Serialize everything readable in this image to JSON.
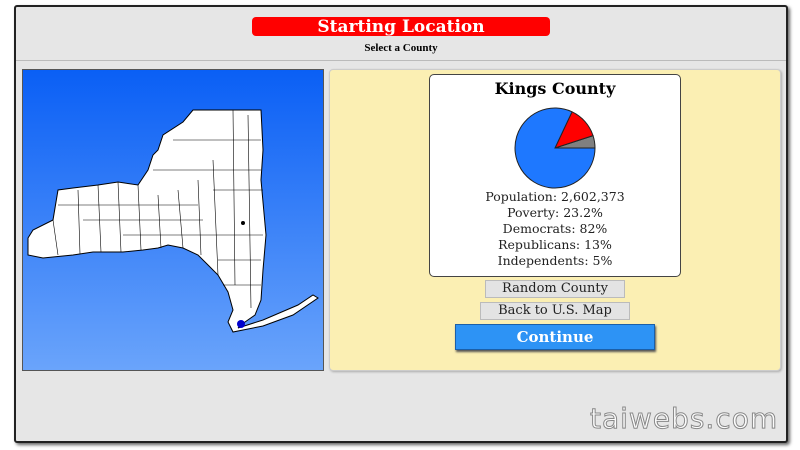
{
  "header": {
    "title": "Starting Location",
    "subtitle": "Select a County"
  },
  "county": {
    "name": "Kings County",
    "population": "Population: 2,602,373",
    "poverty": "Poverty: 23.2%",
    "democrats": "Democrats: 82%",
    "republicans": "Republicans: 13%",
    "independents": "Independents: 5%"
  },
  "pie": {
    "slices": [
      {
        "label": "Independents",
        "value": 5,
        "color": "#808080"
      },
      {
        "label": "Republicans",
        "value": 13,
        "color": "#ff0000"
      },
      {
        "label": "Democrats",
        "value": 82,
        "color": "#1e78ff"
      }
    ]
  },
  "buttons": {
    "random": "Random County",
    "back": "Back to U.S. Map",
    "continue": "Continue"
  },
  "map": {
    "state": "New York",
    "selected_marker_color": "#0000cc"
  },
  "watermark": "taiwebs.com"
}
